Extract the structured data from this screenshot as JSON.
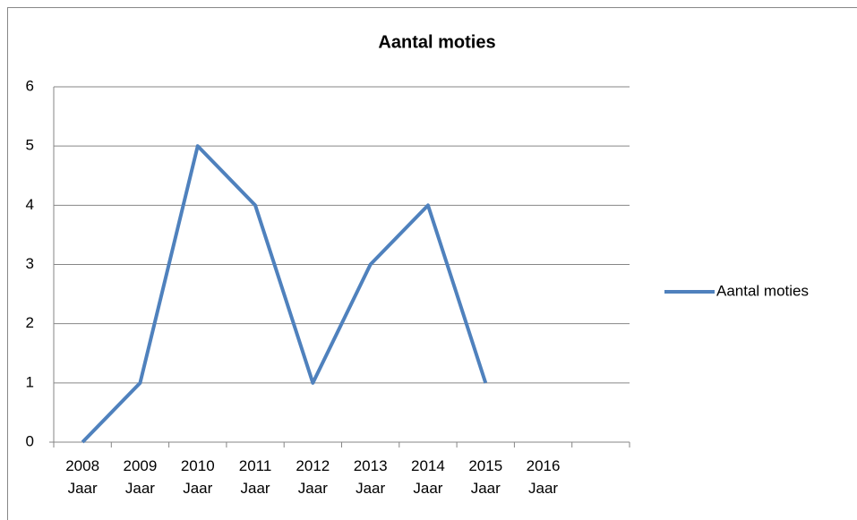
{
  "chart_data": {
    "type": "line",
    "title": "Aantal moties",
    "categories": [
      "2008 Jaar",
      "2009 Jaar",
      "2010 Jaar",
      "2011 Jaar",
      "2012 Jaar",
      "2013 Jaar",
      "2014 Jaar",
      "2015 Jaar",
      "2016 Jaar",
      null
    ],
    "series": [
      {
        "name": "Aantal moties",
        "color": "#4f81bd",
        "values": [
          0,
          1,
          5,
          4,
          1,
          3,
          4,
          1,
          null,
          null
        ]
      }
    ],
    "ylim": [
      0,
      6
    ],
    "yticks": [
      0,
      1,
      2,
      3,
      4,
      5,
      6
    ],
    "grid": true,
    "legend": "right"
  }
}
